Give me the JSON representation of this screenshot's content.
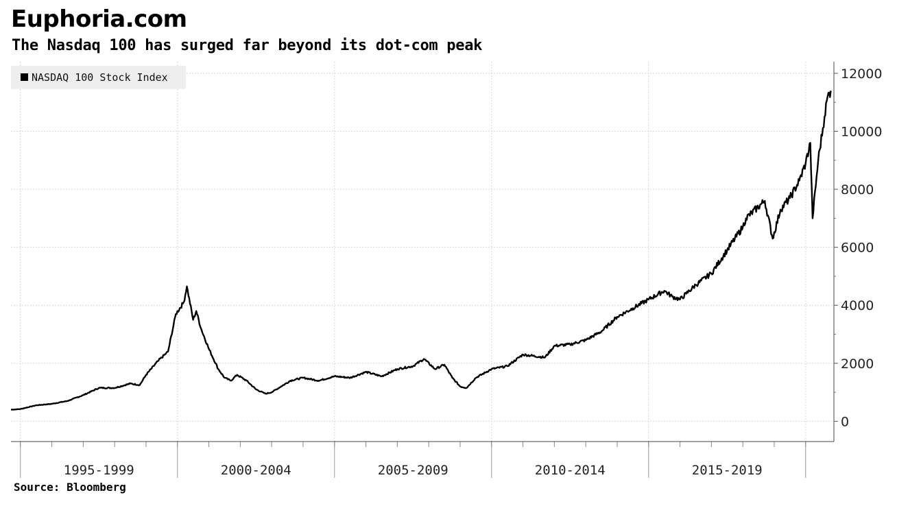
{
  "title": "Euphoria.com",
  "subtitle": "The Nasdaq 100 has surged far beyond its dot-com peak",
  "source": "Source: Bloomberg",
  "colors": {
    "line": "#000000",
    "grid": "#d8d8d8",
    "legend_bg": "#eeeeee"
  },
  "chart_data": {
    "type": "line",
    "title": "Euphoria.com",
    "subtitle": "The Nasdaq 100 has surged far beyond its dot-com peak",
    "xlabel": "",
    "ylabel": "",
    "categories": [
      "1995-1999",
      "2000-2004",
      "2005-2009",
      "2010-2014",
      "2015-2019"
    ],
    "x_range": [
      1994.7,
      2020.9
    ],
    "ylim": [
      -700,
      12400
    ],
    "y_ticks": [
      0,
      2000,
      4000,
      6000,
      8000,
      10000,
      12000
    ],
    "y_tick_labels": [
      "0",
      "2000",
      "4000",
      "6000",
      "8000",
      "10000",
      "12000"
    ],
    "y_axis_side": "right",
    "grid": true,
    "legend_position": "top-left",
    "series": [
      {
        "name": "NASDAQ 100 Stock Index",
        "x": [
          1994.7,
          1995.0,
          1995.5,
          1996.0,
          1996.5,
          1997.0,
          1997.5,
          1998.0,
          1998.5,
          1998.8,
          1999.0,
          1999.4,
          1999.7,
          1999.95,
          2000.2,
          2000.3,
          2000.5,
          2000.6,
          2000.75,
          2001.0,
          2001.3,
          2001.5,
          2001.7,
          2001.9,
          2002.2,
          2002.5,
          2002.8,
          2003.0,
          2003.3,
          2003.6,
          2004.0,
          2004.5,
          2005.0,
          2005.5,
          2006.0,
          2006.5,
          2007.0,
          2007.5,
          2007.85,
          2008.2,
          2008.5,
          2008.75,
          2009.0,
          2009.2,
          2009.5,
          2010.0,
          2010.5,
          2011.0,
          2011.7,
          2012.0,
          2012.5,
          2013.0,
          2013.5,
          2014.0,
          2014.5,
          2015.0,
          2015.5,
          2015.75,
          2016.0,
          2016.2,
          2016.5,
          2017.0,
          2017.5,
          2018.0,
          2018.1,
          2018.7,
          2018.95,
          2019.2,
          2019.5,
          2019.8,
          2020.0,
          2020.15,
          2020.22,
          2020.4,
          2020.6,
          2020.7,
          2020.8
        ],
        "values": [
          400,
          420,
          550,
          600,
          700,
          900,
          1150,
          1150,
          1300,
          1250,
          1600,
          2100,
          2400,
          3700,
          4100,
          4650,
          3500,
          3800,
          3200,
          2500,
          1800,
          1500,
          1400,
          1600,
          1400,
          1100,
          950,
          1000,
          1200,
          1400,
          1500,
          1400,
          1550,
          1500,
          1700,
          1550,
          1800,
          1900,
          2150,
          1800,
          1950,
          1500,
          1200,
          1150,
          1500,
          1800,
          1900,
          2300,
          2200,
          2600,
          2650,
          2800,
          3100,
          3600,
          3900,
          4200,
          4500,
          4300,
          4200,
          4400,
          4700,
          5100,
          5900,
          6700,
          7000,
          7600,
          6300,
          7300,
          7700,
          8300,
          8900,
          9600,
          7000,
          9000,
          10500,
          11200,
          11400
        ]
      }
    ]
  }
}
